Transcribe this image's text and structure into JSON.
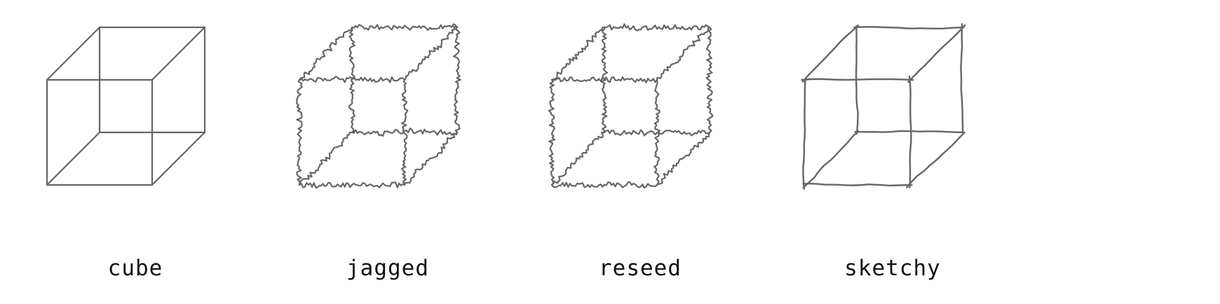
{
  "style": {
    "stroke_color": "#666666",
    "text_color": "#111111",
    "background": "#ffffff"
  },
  "panels": [
    {
      "label": "cube",
      "style": "clean"
    },
    {
      "label": "jagged",
      "style": "jagged"
    },
    {
      "label": "reseed",
      "style": "jagged"
    },
    {
      "label": "sketchy",
      "style": "sketchy"
    }
  ]
}
